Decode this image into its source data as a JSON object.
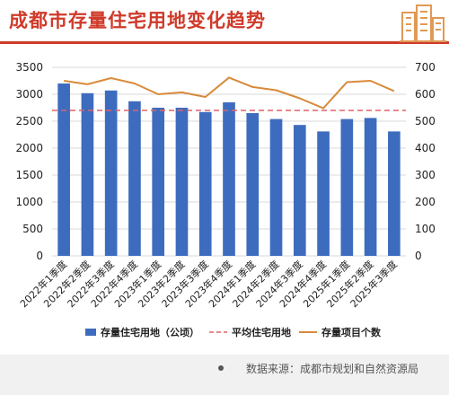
{
  "title": "成都市存量住宅用地变化趋势",
  "source": "数据来源：成都市规划和自然资源局",
  "colors": {
    "title": "#cf3a2a",
    "bar": "#3d6cbf",
    "avg_line": "#e0606a",
    "line": "#d88a3a",
    "grid": "#d9d9d9",
    "axis_text": "#222222"
  },
  "icons": {
    "logo": "building-icon"
  },
  "chart_data": {
    "type": "bar",
    "categories": [
      "2022年1季度",
      "2022年2季度",
      "2022年3季度",
      "2022年4季度",
      "2023年1季度",
      "2023年2季度",
      "2023年3季度",
      "2023年4季度",
      "2024年1季度",
      "2024年2季度",
      "2024年3季度",
      "2024年4季度",
      "2025年1季度",
      "2025年2季度",
      "2025年3季度"
    ],
    "series": [
      {
        "name": "存量住宅用地（公顷）",
        "type": "bar",
        "axis": "left",
        "values": [
          3200,
          3020,
          3070,
          2870,
          2750,
          2750,
          2670,
          2850,
          2650,
          2540,
          2430,
          2310,
          2540,
          2560,
          2310
        ]
      },
      {
        "name": "平均住宅用地",
        "type": "line",
        "style": "dashed",
        "axis": "left",
        "values": [
          2700,
          2700,
          2700,
          2700,
          2700,
          2700,
          2700,
          2700,
          2700,
          2700,
          2700,
          2700,
          2700,
          2700,
          2700
        ]
      },
      {
        "name": "存量项目个数",
        "type": "line",
        "axis": "right",
        "values": [
          650,
          637,
          660,
          640,
          600,
          607,
          590,
          662,
          627,
          615,
          585,
          548,
          645,
          650,
          612
        ]
      }
    ],
    "y_left": {
      "min": 0,
      "max": 3500,
      "ticks": [
        "0",
        "500",
        "1000",
        "1500",
        "2000",
        "2500",
        "3000",
        "3500"
      ]
    },
    "y_right": {
      "min": 0,
      "max": 700,
      "ticks": [
        "0",
        "100",
        "200",
        "300",
        "400",
        "500",
        "600",
        "700"
      ]
    },
    "grid": true,
    "legend": "bottom"
  }
}
